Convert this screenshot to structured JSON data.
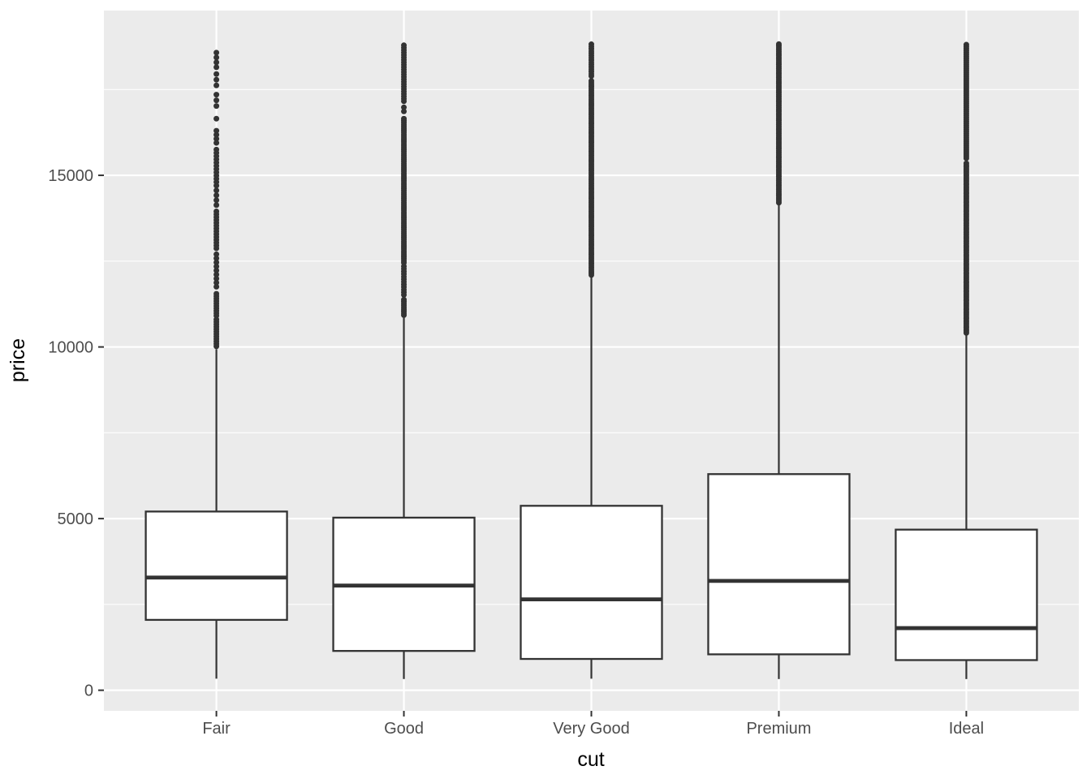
{
  "chart_data": {
    "type": "boxplot",
    "title": "",
    "xlabel": "cut",
    "ylabel": "price",
    "categories": [
      "Fair",
      "Good",
      "Very Good",
      "Premium",
      "Ideal"
    ],
    "y_ticks": [
      0,
      5000,
      10000,
      15000
    ],
    "y_minor_gridlines": [
      2500,
      7500,
      12500,
      17500
    ],
    "ylim": [
      -600,
      19800
    ],
    "grid": true,
    "legend": false,
    "colors": {
      "panel_bg": "#EBEBEB",
      "grid": "#FFFFFF",
      "box_stroke": "#333333",
      "box_fill": "#FFFFFF",
      "outlier": "#333333",
      "tick_label": "#4D4D4D",
      "axis_title": "#000000"
    },
    "boxes": [
      {
        "category": "Fair",
        "whisker_low": 337,
        "q1": 2050,
        "median": 3282,
        "q3": 5206,
        "whisker_high": 9938,
        "outlier_min": 9950,
        "outlier_max": 18574,
        "outlier_segments": [
          [
            18574,
            18050,
            6
          ],
          [
            17950,
            17500,
            7
          ],
          [
            17350,
            16950,
            7
          ],
          [
            16650,
            16450,
            9
          ],
          [
            16300,
            15850,
            5
          ],
          [
            15750,
            14800,
            4
          ],
          [
            14700,
            14050,
            6
          ],
          [
            13950,
            12850,
            3.5
          ],
          [
            12700,
            11650,
            5
          ],
          [
            11550,
            10850,
            3
          ],
          [
            10800,
            9950,
            3
          ]
        ]
      },
      {
        "category": "Good",
        "whisker_low": 327,
        "q1": 1145,
        "median": 3050,
        "q3": 5028,
        "whisker_high": 10850,
        "outlier_min": 10870,
        "outlier_max": 18788,
        "outlier_segments": [
          [
            18788,
            17150,
            3
          ],
          [
            16980,
            16750,
            5
          ],
          [
            16650,
            12450,
            2.4
          ],
          [
            12350,
            11450,
            3.2
          ],
          [
            11380,
            10870,
            2.4
          ]
        ]
      },
      {
        "category": "Very Good",
        "whisker_low": 336,
        "q1": 912,
        "median": 2648,
        "q3": 5373,
        "whisker_high": 12060,
        "outlier_min": 12080,
        "outlier_max": 18818,
        "outlier_segments": [
          [
            18818,
            17850,
            2.8
          ],
          [
            17750,
            12080,
            2.3
          ]
        ]
      },
      {
        "category": "Premium",
        "whisker_low": 326,
        "q1": 1046,
        "median": 3185,
        "q3": 6296,
        "whisker_high": 14170,
        "outlier_min": 14190,
        "outlier_max": 18823,
        "outlier_segments": [
          [
            18823,
            14190,
            2.3
          ]
        ]
      },
      {
        "category": "Ideal",
        "whisker_low": 326,
        "q1": 878,
        "median": 1810,
        "q3": 4679,
        "whisker_high": 10375,
        "outlier_min": 10395,
        "outlier_max": 18806,
        "outlier_segments": [
          [
            18806,
            15450,
            2.5
          ],
          [
            15350,
            10395,
            2.2
          ]
        ]
      }
    ]
  }
}
